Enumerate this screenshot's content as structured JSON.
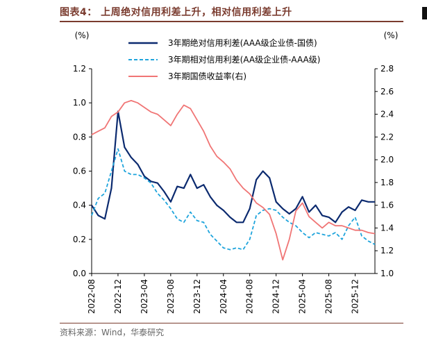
{
  "header": {
    "title": "图表4：  上周绝对信用利差上升，相对信用利差上升"
  },
  "footer": {
    "source": "资料来源：Wind，华泰研究"
  },
  "chart_data": {
    "type": "line",
    "left_unit": "(%)",
    "right_unit": "(%)",
    "y_left": {
      "min": 0.0,
      "max": 1.2,
      "ticks": [
        "0.0",
        "0.2",
        "0.4",
        "0.6",
        "0.8",
        "1.0",
        "1.2"
      ]
    },
    "y_right": {
      "min": 1.0,
      "max": 2.8,
      "ticks": [
        "1.0",
        "1.2",
        "1.4",
        "1.6",
        "1.8",
        "2.0",
        "2.2",
        "2.4",
        "2.6",
        "2.8"
      ]
    },
    "x_range": [
      "2022-08",
      "2026-03"
    ],
    "x_ticks": [
      "2022-08",
      "2022-12",
      "2023-04",
      "2023-08",
      "2023-12",
      "2024-04",
      "2024-08",
      "2024-12",
      "2025-04",
      "2025-08",
      "2025-12"
    ],
    "colors": {
      "absolute": "#0b2a6f",
      "relative": "#1ea4dc",
      "yield": "#f07575"
    },
    "legend_position": "top",
    "series": [
      {
        "name": "3年期绝对信用利差(AAA级企业债-国债)",
        "axis": "left",
        "style": "solid",
        "x": [
          "2022-08",
          "2022-09",
          "2022-10",
          "2022-11",
          "2022-12",
          "2023-01",
          "2023-02",
          "2023-03",
          "2023-04",
          "2023-05",
          "2023-06",
          "2023-07",
          "2023-08",
          "2023-09",
          "2023-10",
          "2023-11",
          "2023-12",
          "2024-01",
          "2024-02",
          "2024-03",
          "2024-04",
          "2024-05",
          "2024-06",
          "2024-07",
          "2024-08",
          "2024-09",
          "2024-10",
          "2024-11",
          "2024-12",
          "2025-01",
          "2025-02",
          "2025-03",
          "2025-04",
          "2025-05",
          "2025-06",
          "2025-07",
          "2025-08",
          "2025-09",
          "2025-10",
          "2025-11",
          "2025-12",
          "2026-01",
          "2026-02",
          "2026-03"
        ],
        "values": [
          0.4,
          0.34,
          0.32,
          0.5,
          0.95,
          0.74,
          0.68,
          0.64,
          0.57,
          0.54,
          0.53,
          0.48,
          0.42,
          0.51,
          0.5,
          0.58,
          0.5,
          0.52,
          0.45,
          0.4,
          0.37,
          0.33,
          0.3,
          0.3,
          0.38,
          0.55,
          0.6,
          0.56,
          0.42,
          0.38,
          0.35,
          0.38,
          0.45,
          0.36,
          0.4,
          0.34,
          0.33,
          0.3,
          0.36,
          0.39,
          0.37,
          0.43,
          0.42,
          0.42
        ]
      },
      {
        "name": "3年期相对信用利差(AA级企业债-AAA级)",
        "axis": "left",
        "style": "dashed",
        "x": [
          "2022-08",
          "2022-09",
          "2022-10",
          "2022-11",
          "2022-12",
          "2023-01",
          "2023-02",
          "2023-03",
          "2023-04",
          "2023-05",
          "2023-06",
          "2023-07",
          "2023-08",
          "2023-09",
          "2023-10",
          "2023-11",
          "2023-12",
          "2024-01",
          "2024-02",
          "2024-03",
          "2024-04",
          "2024-05",
          "2024-06",
          "2024-07",
          "2024-08",
          "2024-09",
          "2024-10",
          "2024-11",
          "2024-12",
          "2025-01",
          "2025-02",
          "2025-03",
          "2025-04",
          "2025-05",
          "2025-06",
          "2025-07",
          "2025-08",
          "2025-09",
          "2025-10",
          "2025-11",
          "2025-12",
          "2026-01",
          "2026-02",
          "2026-03"
        ],
        "values": [
          0.34,
          0.44,
          0.47,
          0.6,
          0.73,
          0.6,
          0.58,
          0.58,
          0.56,
          0.53,
          0.47,
          0.43,
          0.38,
          0.32,
          0.3,
          0.36,
          0.31,
          0.3,
          0.23,
          0.19,
          0.15,
          0.14,
          0.15,
          0.14,
          0.2,
          0.34,
          0.37,
          0.38,
          0.37,
          0.33,
          0.3,
          0.28,
          0.24,
          0.21,
          0.24,
          0.23,
          0.22,
          0.24,
          0.2,
          0.28,
          0.33,
          0.22,
          0.19,
          0.17
        ]
      },
      {
        "name": "3年期国债收益率(右)",
        "axis": "right",
        "style": "solid",
        "x": [
          "2022-08",
          "2022-09",
          "2022-10",
          "2022-11",
          "2022-12",
          "2023-01",
          "2023-02",
          "2023-03",
          "2023-04",
          "2023-05",
          "2023-06",
          "2023-07",
          "2023-08",
          "2023-09",
          "2023-10",
          "2023-11",
          "2023-12",
          "2024-01",
          "2024-02",
          "2024-03",
          "2024-04",
          "2024-05",
          "2024-06",
          "2024-07",
          "2024-08",
          "2024-09",
          "2024-10",
          "2024-11",
          "2024-12",
          "2025-01",
          "2025-02",
          "2025-03",
          "2025-04",
          "2025-05",
          "2025-06",
          "2025-07",
          "2025-08",
          "2025-09",
          "2025-10",
          "2025-11",
          "2025-12",
          "2026-01",
          "2026-02",
          "2026-03"
        ],
        "values": [
          2.22,
          2.25,
          2.28,
          2.38,
          2.42,
          2.5,
          2.52,
          2.5,
          2.46,
          2.42,
          2.4,
          2.35,
          2.3,
          2.4,
          2.48,
          2.45,
          2.35,
          2.25,
          2.12,
          2.03,
          1.98,
          1.92,
          1.82,
          1.75,
          1.7,
          1.62,
          1.58,
          1.52,
          1.35,
          1.12,
          1.3,
          1.55,
          1.62,
          1.5,
          1.45,
          1.4,
          1.45,
          1.42,
          1.42,
          1.4,
          1.38,
          1.38,
          1.36,
          1.35
        ]
      }
    ]
  }
}
